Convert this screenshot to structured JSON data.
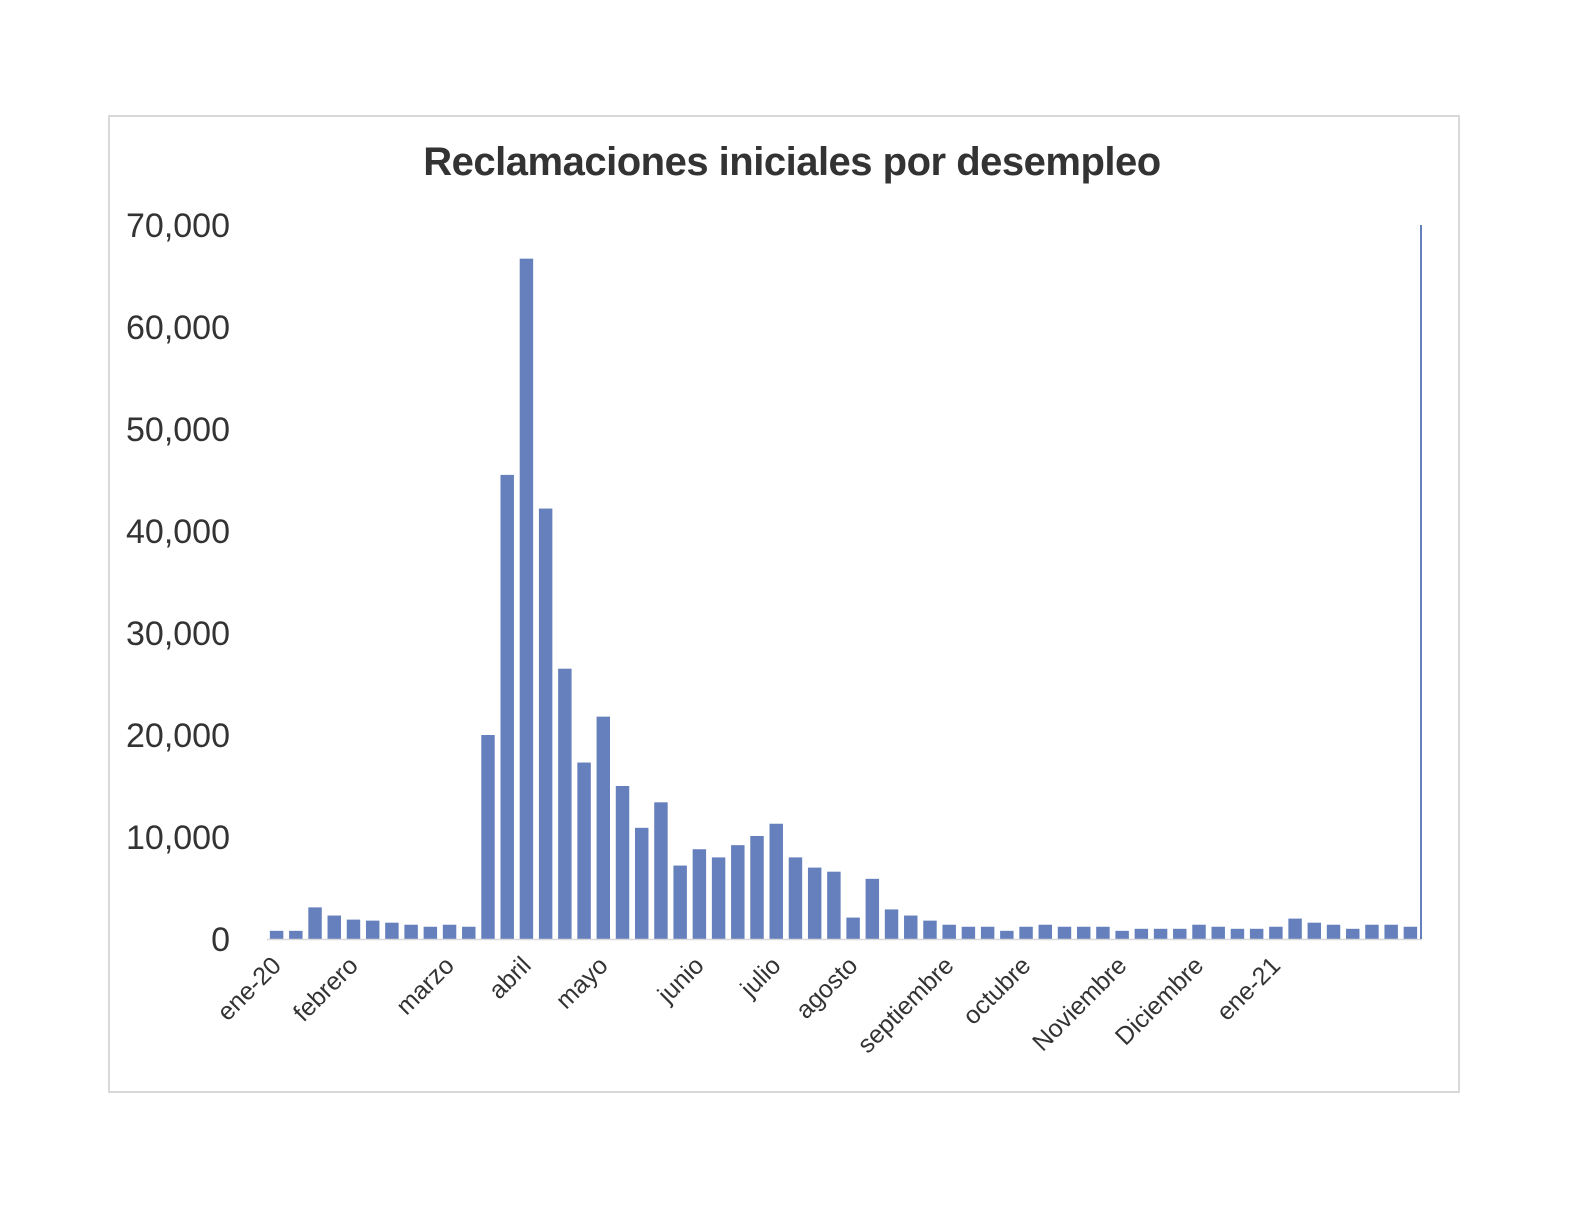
{
  "chart_data": {
    "type": "bar",
    "title": "Reclamaciones iniciales por desempleo",
    "xlabel": "",
    "ylabel": "",
    "ylim": [
      0,
      70000
    ],
    "yticks": [
      0,
      10000,
      20000,
      30000,
      40000,
      50000,
      60000,
      70000
    ],
    "ytick_labels": [
      "0",
      "10,000",
      "20,000",
      "30,000",
      "40,000",
      "50,000",
      "60,000",
      "70,000"
    ],
    "grid": false,
    "legend": "none",
    "bar_color": "#6580bc",
    "x_labels": [
      {
        "label": "ene-20",
        "index": 0
      },
      {
        "label": "febrero",
        "index": 4
      },
      {
        "label": "marzo",
        "index": 9
      },
      {
        "label": "abril",
        "index": 13
      },
      {
        "label": "mayo",
        "index": 17
      },
      {
        "label": "junio",
        "index": 22
      },
      {
        "label": "julio",
        "index": 26
      },
      {
        "label": "agosto",
        "index": 30
      },
      {
        "label": "septiembre",
        "index": 35
      },
      {
        "label": "octubre",
        "index": 39
      },
      {
        "label": "Noviembre",
        "index": 44
      },
      {
        "label": "Diciembre",
        "index": 48
      },
      {
        "label": "ene-21",
        "index": 52
      }
    ],
    "values": [
      800,
      800,
      3100,
      2300,
      1900,
      1800,
      1600,
      1400,
      1200,
      1400,
      1200,
      20000,
      45500,
      66700,
      42200,
      26500,
      17300,
      21800,
      15000,
      10900,
      13400,
      7200,
      8800,
      8000,
      9200,
      10100,
      11300,
      8000,
      7000,
      6600,
      2100,
      5900,
      2900,
      2300,
      1800,
      1400,
      1200,
      1200,
      800,
      1200,
      1400,
      1200,
      1200,
      1200,
      800,
      1000,
      1000,
      1000,
      1400,
      1200,
      1000,
      1000,
      1200,
      2000,
      1600,
      1400,
      1000,
      1400,
      1400,
      1200
    ]
  }
}
